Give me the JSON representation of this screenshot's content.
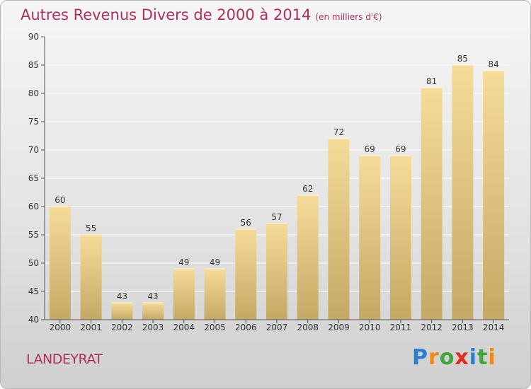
{
  "title": "Autres Revenus Divers de 2000 à 2014",
  "unit": "(en milliers d'€)",
  "location": "LANDEYRAT",
  "brand": {
    "letters": [
      "P",
      "r",
      "o",
      "x",
      "i",
      "t",
      "i"
    ],
    "colors": [
      "#2a7fd0",
      "#f08a1c",
      "#3ea63a",
      "#e8271f",
      "#2a7fd0",
      "#3ea63a",
      "#f08a1c"
    ]
  },
  "colors": {
    "bar_light": "#f5dc98",
    "bar_dark": "#c4a965",
    "grid": "#ffffff",
    "axis": "#555555",
    "title": "#b0305a"
  },
  "chart_data": {
    "type": "bar",
    "categories": [
      "2000",
      "2001",
      "2002",
      "2003",
      "2004",
      "2005",
      "2006",
      "2007",
      "2008",
      "2009",
      "2010",
      "2011",
      "2012",
      "2013",
      "2014"
    ],
    "values": [
      60,
      55,
      43,
      43,
      49,
      49,
      56,
      57,
      62,
      72,
      69,
      69,
      81,
      85,
      84
    ],
    "yticks": [
      40,
      45,
      50,
      55,
      60,
      65,
      70,
      75,
      80,
      85,
      90
    ],
    "ylim": [
      40,
      90
    ],
    "grid": true
  }
}
